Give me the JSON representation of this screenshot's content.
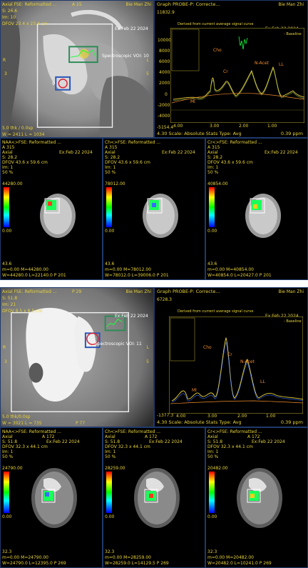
{
  "top": {
    "axial": {
      "title": "Axial FSE: Reformatted ...",
      "series_tag": "A 15",
      "patient": "Bie Man Zhi",
      "s_line": "S: 26.6",
      "im_line": "Im: 10",
      "dfov_line": "DFOV 23.4 x 23.4 cm",
      "voi_label": "Spectroscopic VOI: 10",
      "r_letter": "R",
      "l_letter": "L",
      "num3": "3",
      "num5": "5",
      "roi_num": "9",
      "bottom1": "5.0 thk / 0.0sp",
      "bottom2": "W = 2411 L = 1034",
      "date": "Ex:Feb 22 2024"
    },
    "graph": {
      "title": "Graph PROBE-P: Correcte...",
      "patient": "Bie Man Zhi",
      "date": "Ex:Feb 22 2024",
      "ymax_label": "11832.9",
      "legend_title": "Derived from current average signal curve",
      "legend_right": "- Baseline",
      "peaks": [
        "Cr",
        "N-Acet",
        "LL",
        "Cho",
        "Ml"
      ],
      "x_ticks": [
        "4.00",
        "3.00",
        "2.00",
        "1.00"
      ],
      "y_ticks": [
        "10000",
        "8000",
        "6000",
        "4000",
        "2000",
        "0",
        "-2000",
        "-4000"
      ],
      "ymin_label": "-5154.4",
      "scale_line": "4.30 Scale: Absolute Stats Type: Avg",
      "ppm": "0.39 ppm"
    },
    "maps": [
      {
        "title": "NAA<>FSE: Reformatted ...",
        "series": "A 315",
        "axial": "Axial",
        "s_line": "S: 28.2",
        "date": "Ex:Feb 22 2024",
        "dfov": "DFOV 43.6 x 59.6 cm",
        "im": "Im: 1",
        "pct": "50 %",
        "cmax": "44280.00",
        "cmin": "0.00",
        "bot_value": "43.6",
        "bot_line1": "m=0.00 M=44280.00",
        "bot_line2": "W=44280.0 L=22140.0  P 201"
      },
      {
        "title": "Ch<>FSE: Reformatted ...",
        "series": "A 315",
        "axial": "Axial",
        "s_line": "S: 28.2",
        "date": "Ex:Feb 22 2024",
        "dfov": "DFOV 43.6 x 59.6 cm",
        "im": "Im: 1",
        "pct": "50 %",
        "cmax": "78012.00",
        "cmin": "0.00",
        "bot_value": "43.6",
        "bot_line1": "m=0.00 M=78012.00",
        "bot_line2": "W=78012.0 L=39006.0  P 201"
      },
      {
        "title": "Cr<>FSE: Reformatted ...",
        "series": "A 315",
        "axial": "Axial",
        "s_line": "S: 28.2",
        "date": "Ex:Feb 22 2024",
        "dfov": "DFOV 43.6 x 59.6 cm",
        "im": "Im: 1",
        "pct": "50 %",
        "cmax": "40854.00",
        "cmin": "0.00",
        "bot_value": "43.6",
        "bot_line1": "m=0.00 M=40854.00",
        "bot_line2": "W=40854.0 L=20427.0  P 201"
      }
    ]
  },
  "bottom": {
    "axial": {
      "title": "Axial FSE: Reformatted ...",
      "series_tag": "P 29",
      "patient": "Bie Man Zhi",
      "s_line": "S: 51.8",
      "im_line": "Im: 21",
      "dfov_line": "DFOV 8.5 x 8.5 cm",
      "voi_label": "Spectroscopic VOI: 11",
      "r_letter": "R",
      "l_letter": "L",
      "num3": "3",
      "num5": "5",
      "bottom1": "5.0 thk/0.0sp",
      "bottom2": "W = 3021 L = 735",
      "p_tag": "P 77",
      "date": "Ex:Feb 22 2024"
    },
    "graph": {
      "title": "Graph PROBE-P: Correcte...",
      "patient": "Bie Man Zhi",
      "date": "Ex:Feb 22 2024",
      "ymax_label": "6728.3",
      "legend_title": "Derived from current average signal curve",
      "legend_right": "- Baseline",
      "peaks": [
        "Cr",
        "N-Acet",
        "LL",
        "Cho",
        "Ml"
      ],
      "x_ticks": [
        "4.00",
        "3.00",
        "2.00",
        "1.00"
      ],
      "ymin_label": "-1377.3",
      "scale_line": "4.30 Scale: Absolute Stats Type: Avg",
      "ppm": "0.39 ppm"
    },
    "maps": [
      {
        "title": "NAA<>FSE: Reformatted ...",
        "series": "A 172",
        "axial": "Axial",
        "s_line": "S: 51.8",
        "date": "Ex:Feb 22 2024",
        "dfov": "DFOV 32.3 x 44.1 cm",
        "im": "Im: 1",
        "pct": "50 %",
        "cmax": "24790.00",
        "cmin": "0.00",
        "bot_value": "32.3",
        "bot_line1": "m=0.00 M=24790.00",
        "bot_line2": "W=24790.0 L=12395.0  P 269"
      },
      {
        "title": "Ch<>FSE: Reformatted ...",
        "series": "A 172",
        "axial": "Axial",
        "s_line": "S: 51.8",
        "date": "Ex:Feb 22 2024",
        "dfov": "DFOV 32.3 x 44.1 cm",
        "im": "Im: 1",
        "pct": "50 %",
        "cmax": "28259.00",
        "cmin": "0.00",
        "bot_value": "32.3",
        "bot_line1": "m=0.00 M=28259.00",
        "bot_line2": "W=28259.0 L=14129.5  P 269"
      },
      {
        "title": "Cr<>FSE: Reformatted ...",
        "series": "A 172",
        "axial": "Axial",
        "s_line": "S: 51.8",
        "date": "Ex:Feb 22 2024",
        "dfov": "DFOV 32.3 x 44.1 cm",
        "im": "Im: 1",
        "pct": "50 %",
        "cmax": "20482.00",
        "cmin": "0.00",
        "bot_value": "32.3",
        "bot_line1": "m=0.00 M=20482.00",
        "bot_line2": "W=20482.0 L=10241.0  P 269"
      }
    ]
  }
}
